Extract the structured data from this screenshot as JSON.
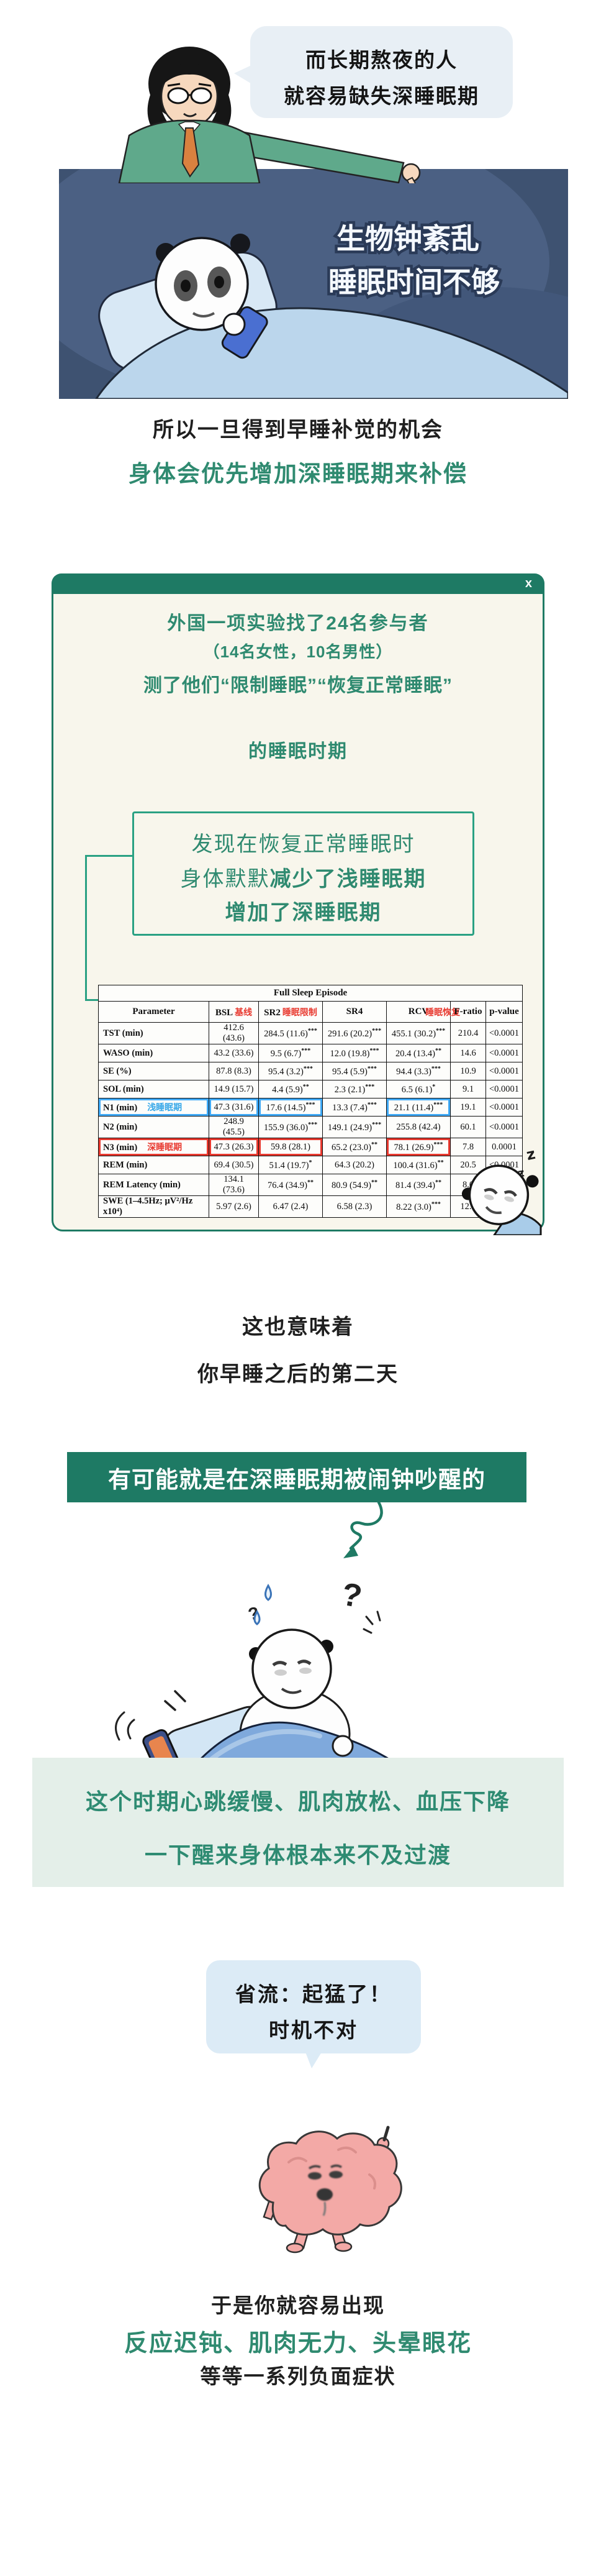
{
  "colors": {
    "green_dark": "#1E7A64",
    "green_text": "#2F8A70",
    "green_bright": "#2AA183",
    "blue_highlight": "#3FA9F5",
    "red_highlight": "#E8392F",
    "night_bg": "#46597B",
    "mint_bg": "#E4EFE9",
    "bubble_top": "#E8EFF5",
    "bubble_bottom": "#DCEBF6"
  },
  "top": {
    "bubble_lines": [
      "而长期熬夜的人",
      "就容易缺失深睡眠期"
    ],
    "night_lines": [
      "生物钟紊乱",
      "睡眠时间不够"
    ]
  },
  "intro": {
    "line_black": "所以一旦得到早睡补觉的机会",
    "line_green": "身体会优先增加深睡眠期来补偿"
  },
  "card": {
    "close_label": "x",
    "intro_lines": [
      "外国一项实验找了24名参与者",
      "（14名女性，10名男性）",
      "测了他们“限制睡眠”“恢复正常睡眠”",
      "的睡眠时期"
    ],
    "finding": {
      "line1": "发现在恢复正常睡眠时",
      "line2_normal": "身体默默",
      "line2_bold": "减少了浅睡眠期",
      "line3": "增加了深睡眠期"
    },
    "sleep_z": [
      "z",
      "z",
      "z"
    ]
  },
  "table": {
    "title": "Full Sleep Episode",
    "headers": [
      "Parameter",
      "BSL",
      "SR2",
      "SR4",
      "RCV",
      "F-ratio",
      "p-value"
    ],
    "header_annotations": [
      {
        "col": 1,
        "text": "基线"
      },
      {
        "col": 2,
        "text": "睡眠限制"
      },
      {
        "col": 4,
        "text": "睡眠恢复"
      }
    ],
    "rows": [
      {
        "param": "TST (min)",
        "cells": [
          {
            "v": "412.6 (43.6)",
            "s": ""
          },
          {
            "v": "284.5 (11.6)",
            "s": "***"
          },
          {
            "v": "291.6 (20.2)",
            "s": "***"
          },
          {
            "v": "455.1 (30.2)",
            "s": "***"
          },
          {
            "v": "210.4",
            "s": ""
          },
          {
            "v": "<0.0001",
            "s": ""
          }
        ]
      },
      {
        "param": "WASO (min)",
        "cells": [
          {
            "v": "43.2 (33.6)",
            "s": ""
          },
          {
            "v": "9.5 (6.7)",
            "s": "***"
          },
          {
            "v": "12.0 (19.8)",
            "s": "***"
          },
          {
            "v": "20.4 (13.4)",
            "s": "**"
          },
          {
            "v": "14.6",
            "s": ""
          },
          {
            "v": "<0.0001",
            "s": ""
          }
        ]
      },
      {
        "param": "SE (%)",
        "cells": [
          {
            "v": "87.8 (8.3)",
            "s": ""
          },
          {
            "v": "95.4 (3.2)",
            "s": "***"
          },
          {
            "v": "95.4 (5.9)",
            "s": "***"
          },
          {
            "v": "94.4 (3.3)",
            "s": "***"
          },
          {
            "v": "10.9",
            "s": ""
          },
          {
            "v": "<0.0001",
            "s": ""
          }
        ]
      },
      {
        "param": "SOL (min)",
        "cells": [
          {
            "v": "14.9 (15.7)",
            "s": ""
          },
          {
            "v": "4.4 (5.9)",
            "s": "**"
          },
          {
            "v": "2.3 (2.1)",
            "s": "***"
          },
          {
            "v": "6.5 (6.1)",
            "s": "*"
          },
          {
            "v": "9.1",
            "s": ""
          },
          {
            "v": "<0.0001",
            "s": ""
          }
        ]
      },
      {
        "param": "N1 (min)",
        "ann": "浅睡眠期",
        "annColor": "blue",
        "hlParam": true,
        "hl": [
          0,
          1,
          3
        ],
        "cells": [
          {
            "v": "47.3 (31.6)",
            "s": ""
          },
          {
            "v": "17.6 (14.5)",
            "s": "***"
          },
          {
            "v": "13.3 (7.4)",
            "s": "***"
          },
          {
            "v": "21.1 (11.4)",
            "s": "***"
          },
          {
            "v": "19.1",
            "s": ""
          },
          {
            "v": "<0.0001",
            "s": ""
          }
        ]
      },
      {
        "param": "N2 (min)",
        "cells": [
          {
            "v": "248.9 (45.5)",
            "s": ""
          },
          {
            "v": "155.9 (36.0)",
            "s": "***"
          },
          {
            "v": "149.1 (24.9)",
            "s": "***"
          },
          {
            "v": "255.8 (42.4)",
            "s": ""
          },
          {
            "v": "60.1",
            "s": ""
          },
          {
            "v": "<0.0001",
            "s": ""
          }
        ]
      },
      {
        "param": "N3 (min)",
        "ann": "深睡眠期",
        "annColor": "red",
        "hlParam": true,
        "hl": [
          0,
          1,
          3
        ],
        "cells": [
          {
            "v": "47.3 (26.3)",
            "s": ""
          },
          {
            "v": "59.8 (28.1)",
            "s": ""
          },
          {
            "v": "65.2 (23.0)",
            "s": "**"
          },
          {
            "v": "78.1 (26.9)",
            "s": "***"
          },
          {
            "v": "7.8",
            "s": ""
          },
          {
            "v": "0.0001",
            "s": ""
          }
        ]
      },
      {
        "param": "REM (min)",
        "cells": [
          {
            "v": "69.4 (30.5)",
            "s": ""
          },
          {
            "v": "51.4 (19.7)",
            "s": "*"
          },
          {
            "v": "64.3 (20.2)",
            "s": ""
          },
          {
            "v": "100.4 (31.6)",
            "s": "**"
          },
          {
            "v": "20.5",
            "s": ""
          },
          {
            "v": "<0.0001",
            "s": ""
          }
        ]
      },
      {
        "param": "REM Latency (min)",
        "cells": [
          {
            "v": "134.1 (73.6)",
            "s": ""
          },
          {
            "v": "76.4 (34.9)",
            "s": "**"
          },
          {
            "v": "80.9 (54.9)",
            "s": "**"
          },
          {
            "v": "81.4 (39.4)",
            "s": "**"
          },
          {
            "v": "8.0",
            "s": ""
          },
          {
            "v": "0.0001",
            "s": ""
          }
        ]
      },
      {
        "param": "SWE (1–4.5Hz; μV²/Hz x10⁴)",
        "cells": [
          {
            "v": "5.97 (2.6)",
            "s": ""
          },
          {
            "v": "6.47 (2.4)",
            "s": ""
          },
          {
            "v": "6.58 (2.3)",
            "s": ""
          },
          {
            "v": "8.22 (3.0)",
            "s": "***"
          },
          {
            "v": "12.8",
            "s": ""
          },
          {
            "v": "",
            "s": ""
          }
        ]
      }
    ]
  },
  "middle": {
    "line1": "这也意味着",
    "line2": "你早睡之后的第二天",
    "banner_pre": "有可能就是在",
    "banner_bold": "深睡眠期",
    "banner_post": "被闹钟吵醒的",
    "question_big": "?",
    "question_small": "?",
    "mint_line1": "这个时期心跳缓慢、肌肉放松、血压下降",
    "mint_line2": "一下醒来身体根本来不及过渡",
    "bubble_lines": [
      "省流：起猛了！",
      "时机不对"
    ]
  },
  "bottom": {
    "line1": "于是你就容易出现",
    "line_green": "反应迟钝、肌肉无力、头晕眼花",
    "line3": "等等一系列负面症状"
  }
}
